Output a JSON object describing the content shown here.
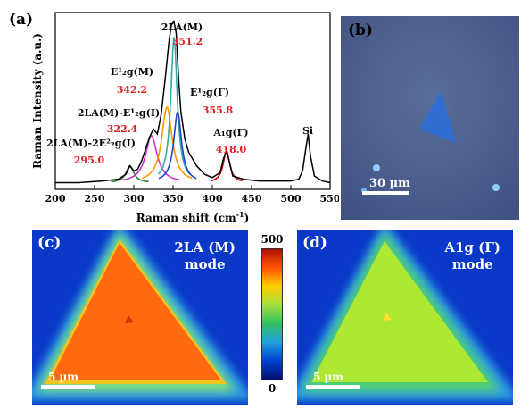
{
  "panels": {
    "a": "(a)",
    "b": "(b)",
    "c": "(c)",
    "d": "(d)"
  },
  "chart_data": {
    "type": "line",
    "xlabel": "Raman shift (cm",
    "xlabel_sup": "-1",
    "xlabel_end": ")",
    "ylabel": "Raman Intensity (a.u.)",
    "xlim": [
      200,
      550
    ],
    "xticks": [
      200,
      250,
      300,
      350,
      400,
      450,
      500,
      550
    ],
    "series": [
      {
        "x": [
          200,
          230,
          260,
          280,
          290,
          295,
          300,
          305,
          310,
          320,
          325,
          330,
          335,
          340,
          345,
          348,
          351,
          354,
          357,
          360,
          365,
          370,
          380,
          390,
          400,
          410,
          414,
          418,
          422,
          426,
          440,
          460,
          480,
          500,
          510,
          515,
          519,
          522,
          525,
          530,
          540,
          550
        ],
        "y": [
          0.04,
          0.04,
          0.05,
          0.06,
          0.09,
          0.14,
          0.11,
          0.12,
          0.17,
          0.31,
          0.36,
          0.33,
          0.45,
          0.66,
          0.89,
          0.98,
          1.0,
          0.93,
          0.66,
          0.46,
          0.3,
          0.22,
          0.14,
          0.09,
          0.07,
          0.1,
          0.18,
          0.23,
          0.16,
          0.08,
          0.06,
          0.05,
          0.05,
          0.05,
          0.06,
          0.11,
          0.24,
          0.33,
          0.2,
          0.08,
          0.05,
          0.04
        ]
      }
    ],
    "annotations": [
      {
        "label": "2LA(M)",
        "value": "351.2",
        "x": 351.2
      },
      {
        "label": "E¹₂g(M)",
        "value": "342.2",
        "x": 342.2
      },
      {
        "label": "2LA(M)-E¹₂g(I)",
        "value": "322.4",
        "x": 322.4
      },
      {
        "label": "2LA(M)-2E²₂g(I)",
        "value": "295.0",
        "x": 295.0
      },
      {
        "label": "E¹₂g(Γ)",
        "value": "355.8",
        "x": 355.8
      },
      {
        "label": "A₁g(Γ)",
        "value": "418.0",
        "x": 418.0
      },
      {
        "label": "Si",
        "value": "",
        "x": 520
      }
    ],
    "fits": [
      {
        "center": 295.0,
        "height": 0.1,
        "width": 6,
        "color": "#2e7d32"
      },
      {
        "center": 322.4,
        "height": 0.28,
        "width": 9,
        "color": "#cc33cc"
      },
      {
        "center": 342.2,
        "height": 0.45,
        "width": 8,
        "color": "#ff9900"
      },
      {
        "center": 351.2,
        "height": 0.86,
        "width": 5,
        "color": "#33aaaa"
      },
      {
        "center": 355.8,
        "height": 0.42,
        "width": 6,
        "color": "#2244cc"
      },
      {
        "center": 418.0,
        "height": 0.19,
        "width": 5,
        "color": "#cc0000"
      }
    ]
  },
  "photo": {
    "scalebar": "30 µm"
  },
  "map_c": {
    "label_line1": "2LA (M)",
    "label_line2": "mode",
    "scalebar": "5 µm"
  },
  "map_d": {
    "label_line1": "A1g (Γ)",
    "label_line2": "mode",
    "scalebar": "5 µm"
  },
  "colorbar": {
    "max": "500",
    "min": "0"
  }
}
